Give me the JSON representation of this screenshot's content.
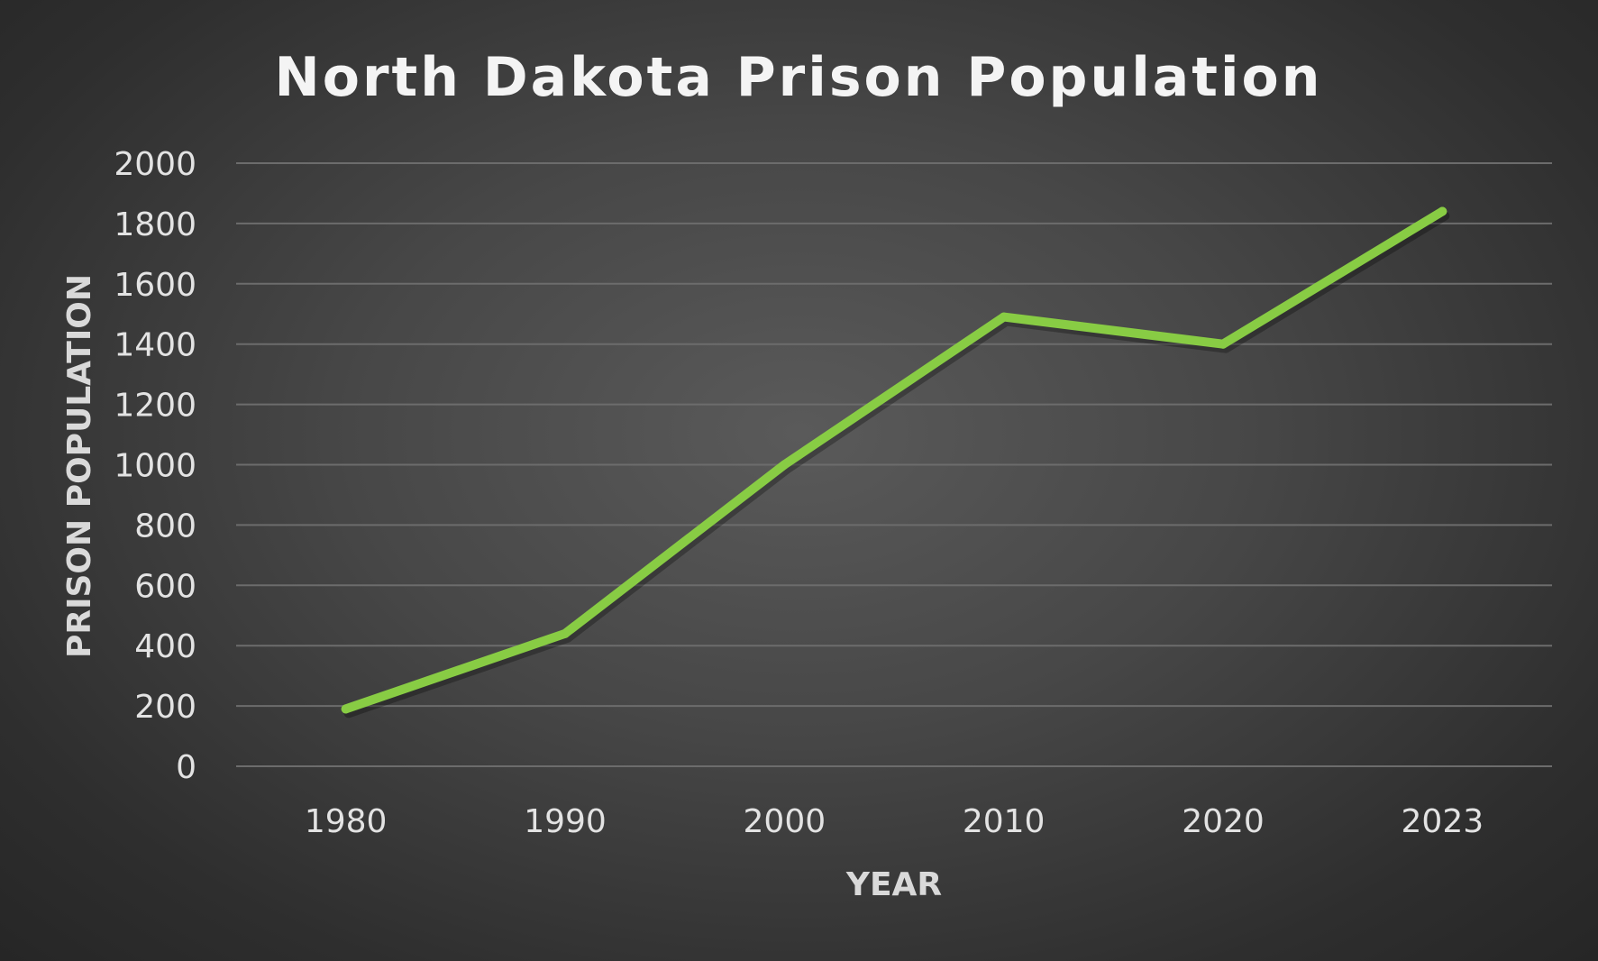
{
  "chart_data": {
    "type": "line",
    "title": "North Dakota Prison Population",
    "xlabel": "YEAR",
    "ylabel": "PRISON POPULATION",
    "categories": [
      "1980",
      "1990",
      "2000",
      "2010",
      "2020",
      "2023"
    ],
    "series": [
      {
        "values": [
          190,
          440,
          1000,
          1490,
          1400,
          1840
        ],
        "color": "#88cc44"
      }
    ],
    "yticks": [
      0,
      200,
      400,
      600,
      800,
      1000,
      1200,
      1400,
      1600,
      1800,
      2000
    ],
    "ylim": [
      0,
      2000
    ],
    "grid": true,
    "legend": "none"
  }
}
